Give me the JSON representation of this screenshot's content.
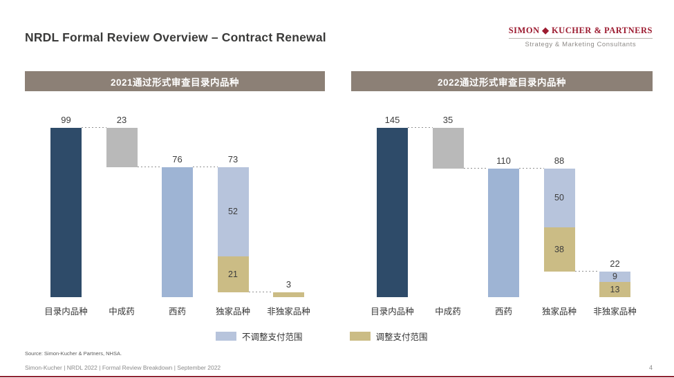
{
  "header": {
    "title": "NRDL Formal Review Overview – Contract Renewal",
    "logo_wordmark": "SIMON ◆ KUCHER & PARTNERS",
    "logo_tagline": "Strategy & Marketing Consultants"
  },
  "colors": {
    "navy": "#2e4b69",
    "gray": "#b9b9b9",
    "steelblue": "#9eb4d4",
    "lightblue": "#b7c4dc",
    "tan": "#cbbc85",
    "header_bar": "#8c8076",
    "brand_red": "#9c1b30",
    "bottom_rule": "#8e1f2f"
  },
  "chart_data": [
    {
      "type": "bar",
      "variant": "waterfall",
      "title": "2021通过形式审查目录内品种",
      "categories": [
        "目录内品种",
        "中成药",
        "西药",
        "独家品种",
        "非独家品种"
      ],
      "ymax": 99,
      "ylim": [
        0,
        99
      ],
      "grid": false,
      "bars": [
        {
          "total_label": "99",
          "base": 0,
          "segments": [
            {
              "value": 99,
              "color": "navy",
              "label": ""
            }
          ]
        },
        {
          "total_label": "23",
          "base": 76,
          "segments": [
            {
              "value": 23,
              "color": "gray",
              "label": ""
            }
          ]
        },
        {
          "total_label": "76",
          "base": 0,
          "segments": [
            {
              "value": 76,
              "color": "steelblue",
              "label": ""
            }
          ]
        },
        {
          "total_label": "73",
          "base": 3,
          "segments": [
            {
              "value": 52,
              "color": "lightblue",
              "label": "52"
            },
            {
              "value": 21,
              "color": "tan",
              "label": "21"
            }
          ]
        },
        {
          "total_label": "3",
          "base": 0,
          "segments": [
            {
              "value": 3,
              "color": "tan",
              "label": ""
            }
          ]
        }
      ],
      "connectors": [
        {
          "level": 99,
          "from": 0,
          "to": 1
        },
        {
          "level": 76,
          "from": 1,
          "to": 2
        },
        {
          "level": 76,
          "from": 2,
          "to": 3
        },
        {
          "level": 3,
          "from": 3,
          "to": 4
        }
      ]
    },
    {
      "type": "bar",
      "variant": "waterfall",
      "title": "2022通过形式审查目录内品种",
      "categories": [
        "目录内品种",
        "中成药",
        "西药",
        "独家品种",
        "非独家品种"
      ],
      "ymax": 145,
      "ylim": [
        0,
        145
      ],
      "grid": false,
      "bars": [
        {
          "total_label": "145",
          "base": 0,
          "segments": [
            {
              "value": 145,
              "color": "navy",
              "label": ""
            }
          ]
        },
        {
          "total_label": "35",
          "base": 110,
          "segments": [
            {
              "value": 35,
              "color": "gray",
              "label": ""
            }
          ]
        },
        {
          "total_label": "110",
          "base": 0,
          "segments": [
            {
              "value": 110,
              "color": "steelblue",
              "label": ""
            }
          ]
        },
        {
          "total_label": "88",
          "base": 22,
          "segments": [
            {
              "value": 50,
              "color": "lightblue",
              "label": "50"
            },
            {
              "value": 38,
              "color": "tan",
              "label": "38"
            }
          ]
        },
        {
          "total_label": "22",
          "base": 0,
          "segments": [
            {
              "value": 9,
              "color": "lightblue",
              "label": "9"
            },
            {
              "value": 13,
              "color": "tan",
              "label": "13"
            }
          ]
        }
      ],
      "connectors": [
        {
          "level": 145,
          "from": 0,
          "to": 1
        },
        {
          "level": 110,
          "from": 1,
          "to": 2
        },
        {
          "level": 110,
          "from": 2,
          "to": 3
        },
        {
          "level": 22,
          "from": 3,
          "to": 4
        }
      ]
    }
  ],
  "legend": {
    "items": [
      {
        "label": "不调整支付范围",
        "color": "lightblue"
      },
      {
        "label": "调整支付范围",
        "color": "tan"
      }
    ]
  },
  "footer": {
    "source": "Source: Simon-Kucher & Partners, NHSA.",
    "meta": "Simon-Kucher | NRDL 2022 | Formal Review Breakdown | September 2022",
    "page": "4"
  }
}
